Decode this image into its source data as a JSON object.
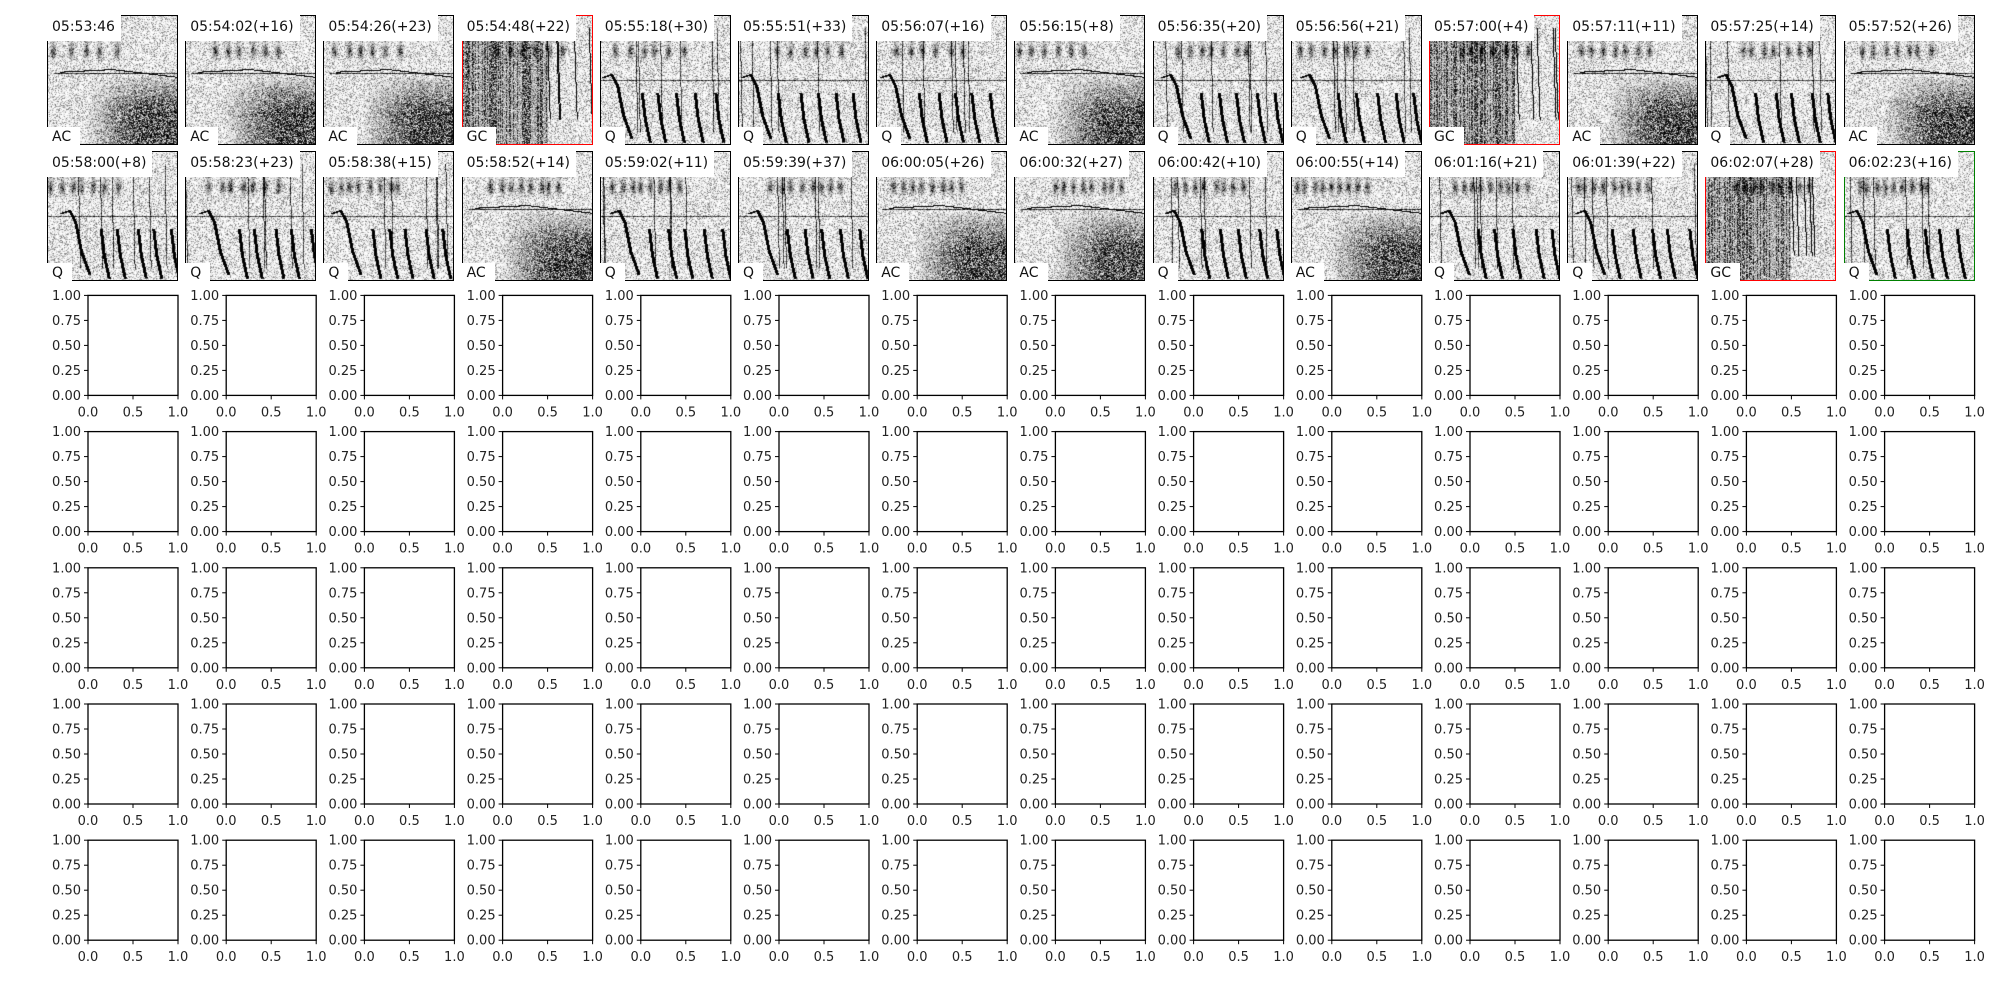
{
  "chart_data": {
    "type": "spectrogram-grid",
    "panels": [
      {
        "time": "05:53:46",
        "label": "AC",
        "border_color": "#000000"
      },
      {
        "time": "05:54:02(+16)",
        "label": "AC",
        "border_color": "#000000"
      },
      {
        "time": "05:54:26(+23)",
        "label": "AC",
        "border_color": "#000000"
      },
      {
        "time": "05:54:48(+22)",
        "label": "GC",
        "border_color": "#ff0000"
      },
      {
        "time": "05:55:18(+30)",
        "label": "Q",
        "border_color": "#000000"
      },
      {
        "time": "05:55:51(+33)",
        "label": "Q",
        "border_color": "#000000"
      },
      {
        "time": "05:56:07(+16)",
        "label": "Q",
        "border_color": "#000000"
      },
      {
        "time": "05:56:15(+8)",
        "label": "AC",
        "border_color": "#000000"
      },
      {
        "time": "05:56:35(+20)",
        "label": "Q",
        "border_color": "#000000"
      },
      {
        "time": "05:56:56(+21)",
        "label": "Q",
        "border_color": "#000000"
      },
      {
        "time": "05:57:00(+4)",
        "label": "GC",
        "border_color": "#ff0000"
      },
      {
        "time": "05:57:11(+11)",
        "label": "AC",
        "border_color": "#000000"
      },
      {
        "time": "05:57:25(+14)",
        "label": "Q",
        "border_color": "#000000"
      },
      {
        "time": "05:57:52(+26)",
        "label": "AC",
        "border_color": "#000000"
      },
      {
        "time": "05:58:00(+8)",
        "label": "Q",
        "border_color": "#000000"
      },
      {
        "time": "05:58:23(+23)",
        "label": "Q",
        "border_color": "#000000"
      },
      {
        "time": "05:58:38(+15)",
        "label": "Q",
        "border_color": "#000000"
      },
      {
        "time": "05:58:52(+14)",
        "label": "AC",
        "border_color": "#000000"
      },
      {
        "time": "05:59:02(+11)",
        "label": "Q",
        "border_color": "#000000"
      },
      {
        "time": "05:59:39(+37)",
        "label": "Q",
        "border_color": "#000000"
      },
      {
        "time": "06:00:05(+26)",
        "label": "AC",
        "border_color": "#000000"
      },
      {
        "time": "06:00:32(+27)",
        "label": "AC",
        "border_color": "#000000"
      },
      {
        "time": "06:00:42(+10)",
        "label": "Q",
        "border_color": "#000000"
      },
      {
        "time": "06:00:55(+14)",
        "label": "AC",
        "border_color": "#000000"
      },
      {
        "time": "06:01:16(+21)",
        "label": "Q",
        "border_color": "#000000"
      },
      {
        "time": "06:01:39(+22)",
        "label": "Q",
        "border_color": "#000000"
      },
      {
        "time": "06:02:07(+28)",
        "label": "GC",
        "border_color": "#ff0000"
      },
      {
        "time": "06:02:23(+16)",
        "label": "Q",
        "border_color": "#008000"
      }
    ],
    "empty_axes": {
      "xlim": [
        0,
        1
      ],
      "ylim": [
        0,
        1
      ],
      "x_ticks": [
        "0.0",
        "0.5",
        "1.0"
      ],
      "y_ticks": [
        "0.00",
        "0.25",
        "0.50",
        "0.75",
        "1.00"
      ]
    }
  }
}
